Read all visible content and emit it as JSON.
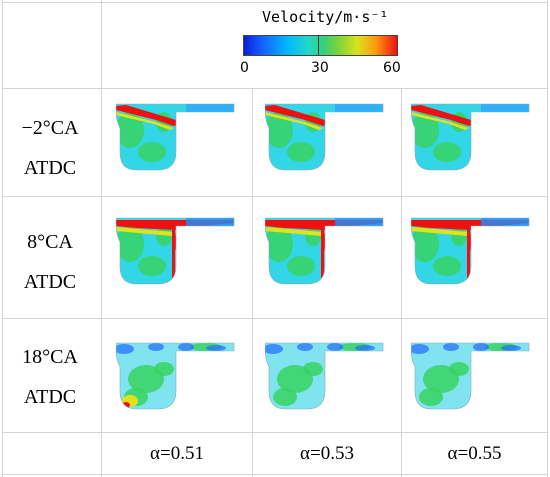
{
  "legend": {
    "title": "Velocity/m·s⁻¹",
    "ticks": [
      "0",
      "30",
      "60"
    ]
  },
  "rows": [
    {
      "line1": "−2°CA",
      "line2": "ATDC"
    },
    {
      "line1": "8°CA",
      "line2": "ATDC"
    },
    {
      "line1": "18°CA",
      "line2": "ATDC"
    }
  ],
  "columns": [
    {
      "label": "α=0.51"
    },
    {
      "label": "α=0.53"
    },
    {
      "label": "α=0.55"
    }
  ],
  "colors": {
    "blue": "#0a1fd6",
    "cyan": "#33d6e6",
    "light_cyan": "#7fe3f0",
    "green": "#37d461",
    "yellow": "#e0e21c",
    "red": "#f01010"
  }
}
